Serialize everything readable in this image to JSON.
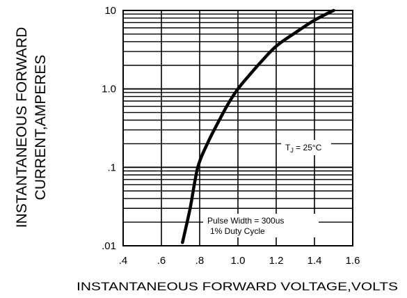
{
  "chart_data": {
    "type": "line",
    "title": "",
    "xlabel": "INSTANTANEOUS FORWARD VOLTAGE,VOLTS",
    "ylabel_line1": "INSTANTANEOUS FORWARD",
    "ylabel_line2": "CURRENT,AMPERES",
    "x_scale": "linear",
    "y_scale": "log",
    "xlim": [
      0.4,
      1.6
    ],
    "ylim": [
      0.01,
      10
    ],
    "x_ticks": [
      0.4,
      0.6,
      0.8,
      1.0,
      1.2,
      1.4,
      1.6
    ],
    "x_tick_labels": [
      ".4",
      ".6",
      ".8",
      "1.0",
      "1.2",
      "1.4",
      "1.6"
    ],
    "y_ticks": [
      0.01,
      0.1,
      1.0,
      10
    ],
    "y_tick_labels": [
      ".01",
      ".1",
      "1.0",
      "10"
    ],
    "grid": true,
    "series": [
      {
        "x": [
          0.71,
          0.75,
          0.79,
          0.84,
          0.89,
          0.95,
          1.0,
          1.06,
          1.12,
          1.2,
          1.3,
          1.4,
          1.5
        ],
        "y": [
          0.011,
          0.03,
          0.1,
          0.2,
          0.35,
          0.65,
          1.0,
          1.5,
          2.2,
          3.5,
          5.2,
          7.5,
          10.0
        ]
      }
    ],
    "annotations": {
      "tj_label": "T",
      "tj_subscript": "J",
      "tj_value": " = 25°C",
      "pulse_width": "Pulse Width = 300us",
      "duty_cycle": "1% Duty Cycle"
    },
    "line_color": "#000000",
    "grid_color": "#000000"
  }
}
